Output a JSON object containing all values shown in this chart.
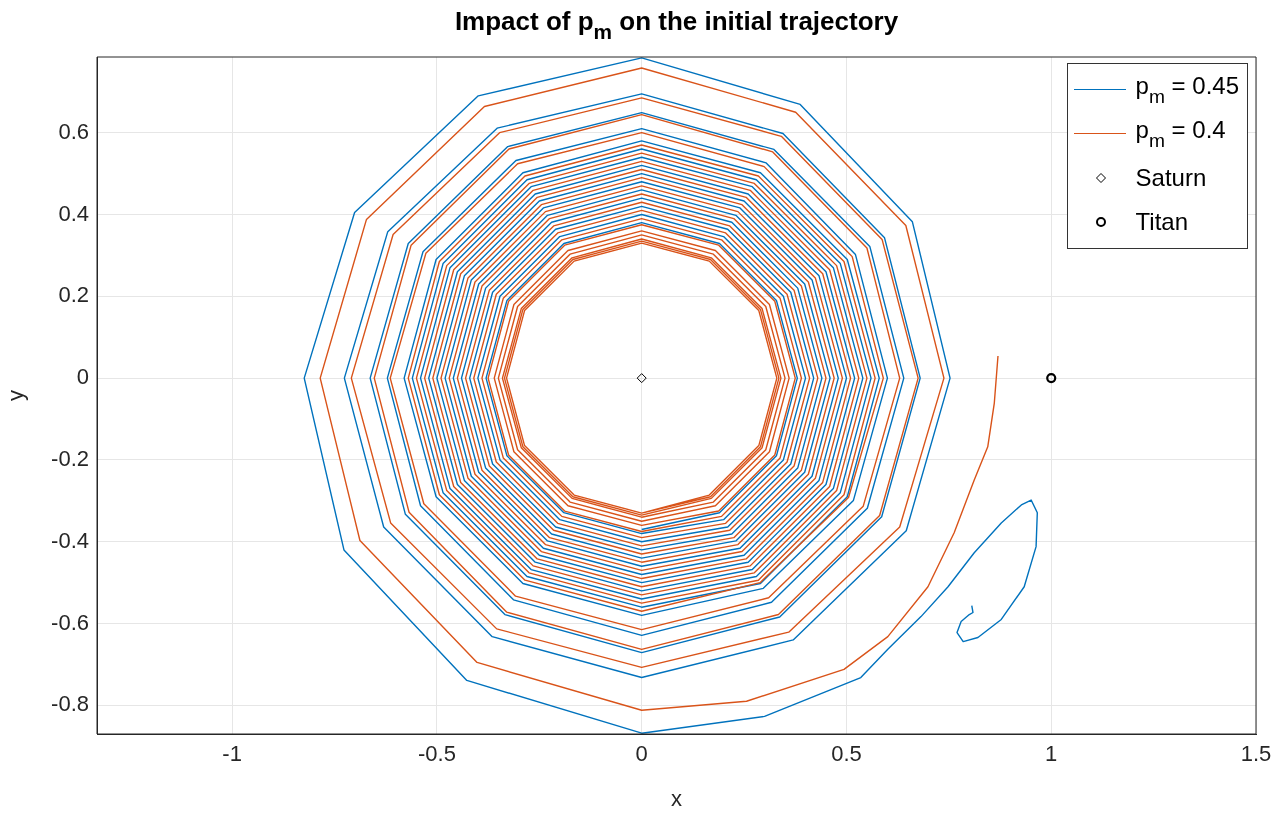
{
  "chart_data": {
    "type": "line",
    "title": "Impact of p$_{m}$ on the initial trajectory",
    "xlabel": "x",
    "ylabel": "y",
    "xlim": [
      -1.33,
      1.5
    ],
    "ylim": [
      -0.87,
      0.785
    ],
    "xticks": [
      -1,
      -0.5,
      0,
      0.5,
      1,
      1.5
    ],
    "yticks": [
      -0.8,
      -0.6,
      -0.4,
      -0.2,
      0,
      0.2,
      0.4,
      0.6
    ],
    "grid": true,
    "legend": "top right",
    "line_style": "solid",
    "marker": "none",
    "series": [
      {
        "name": "p$_{m}$ = 0.45",
        "color": "#0072bd",
        "x": [
          0.806,
          0.809,
          0.8,
          0.78,
          0.77,
          0.785,
          0.821,
          0.878,
          0.934,
          0.963,
          0.966,
          0.951,
          0.927,
          0.878,
          0.812,
          0.748,
          0.682,
          0.601,
          0.535,
          0.3,
          0,
          -0.427,
          -0.727,
          -0.824,
          -0.701,
          -0.399,
          0,
          0.387,
          0.661,
          0.753,
          0.646,
          0.37,
          0,
          -0.365,
          -0.63,
          -0.726,
          -0.62,
          -0.353,
          0,
          0.345,
          0.593,
          0.68,
          0.586,
          0.337,
          0,
          -0.334,
          -0.577,
          -0.663,
          -0.57,
          -0.327,
          0,
          0.323,
          0.557,
          0.64,
          0.551,
          0.317,
          0,
          -0.313,
          -0.54,
          -0.621,
          -0.534,
          -0.307,
          0,
          0.304,
          0.522,
          0.6,
          0.517,
          0.297,
          0,
          -0.29,
          -0.502,
          -0.58,
          -0.502,
          -0.29,
          0,
          0.29,
          0.502,
          0.58,
          0.502,
          0.29,
          0,
          -0.28,
          -0.485,
          -0.56,
          -0.485,
          -0.28,
          0,
          0.28,
          0.485,
          0.56,
          0.485,
          0.28,
          0,
          -0.27,
          -0.468,
          -0.54,
          -0.468,
          -0.27,
          0,
          0.27,
          0.468,
          0.54,
          0.468,
          0.27,
          0,
          -0.26,
          -0.45,
          -0.52,
          -0.45,
          -0.26,
          0,
          0.26,
          0.45,
          0.52,
          0.45,
          0.26,
          0,
          -0.25,
          -0.433,
          -0.5,
          -0.433,
          -0.25,
          0,
          0.25,
          0.433,
          0.5,
          0.433,
          0.25,
          0,
          -0.24,
          -0.416,
          -0.48,
          -0.416,
          -0.24,
          0,
          0.24,
          0.416,
          0.48,
          0.416,
          0.24,
          0,
          -0.23,
          -0.398,
          -0.46,
          -0.398,
          -0.23,
          0,
          0.23,
          0.398,
          0.46,
          0.398,
          0.23,
          0,
          -0.22,
          -0.381,
          -0.44,
          -0.381,
          -0.22,
          0,
          0.22,
          0.381,
          0.44,
          0.381,
          0.22,
          0,
          -0.21,
          -0.364,
          -0.42,
          -0.364,
          -0.21,
          0,
          0.21,
          0.364,
          0.42,
          0.364,
          0.21,
          0,
          -0.2,
          -0.346,
          -0.4,
          -0.346,
          -0.2,
          0,
          0.2,
          0.346,
          0.4,
          0.346,
          0.2,
          0,
          -0.19,
          -0.329,
          -0.38,
          -0.329,
          -0.19,
          0,
          0.19,
          0.329,
          0.38,
          0.329,
          0.19,
          0
        ],
        "values": [
          -0.556,
          -0.573,
          -0.578,
          -0.595,
          -0.622,
          -0.644,
          -0.634,
          -0.59,
          -0.51,
          -0.412,
          -0.329,
          -0.298,
          -0.31,
          -0.354,
          -0.427,
          -0.51,
          -0.583,
          -0.663,
          -0.732,
          -0.827,
          -0.868,
          -0.739,
          -0.42,
          0,
          0.405,
          0.69,
          0.783,
          0.669,
          0.382,
          0,
          -0.373,
          -0.64,
          -0.732,
          -0.632,
          -0.364,
          0,
          0.358,
          0.611,
          0.695,
          0.598,
          0.343,
          0,
          -0.339,
          -0.584,
          -0.671,
          -0.578,
          -0.333,
          0,
          0.329,
          0.566,
          0.649,
          0.559,
          0.322,
          0,
          -0.318,
          -0.548,
          -0.629,
          -0.542,
          -0.312,
          0,
          0.309,
          0.532,
          0.61,
          0.526,
          0.302,
          0,
          -0.299,
          -0.514,
          -0.58,
          -0.502,
          -0.29,
          0,
          0.29,
          0.502,
          0.58,
          0.502,
          0.29,
          0,
          -0.29,
          -0.502,
          -0.56,
          -0.485,
          -0.28,
          0,
          0.28,
          0.485,
          0.56,
          0.485,
          0.28,
          0,
          -0.28,
          -0.485,
          -0.54,
          -0.468,
          -0.27,
          0,
          0.27,
          0.468,
          0.54,
          0.468,
          0.27,
          0,
          -0.27,
          -0.468,
          -0.52,
          -0.45,
          -0.26,
          0,
          0.26,
          0.45,
          0.52,
          0.45,
          0.26,
          0,
          -0.26,
          -0.45,
          -0.5,
          -0.433,
          -0.25,
          0,
          0.25,
          0.433,
          0.5,
          0.433,
          0.25,
          0,
          -0.25,
          -0.433,
          -0.48,
          -0.416,
          -0.24,
          0,
          0.24,
          0.416,
          0.48,
          0.416,
          0.24,
          0,
          -0.24,
          -0.416,
          -0.46,
          -0.398,
          -0.23,
          0,
          0.23,
          0.398,
          0.46,
          0.398,
          0.23,
          0,
          -0.23,
          -0.398,
          -0.44,
          -0.381,
          -0.22,
          0,
          0.22,
          0.381,
          0.44,
          0.381,
          0.22,
          0,
          -0.22,
          -0.381,
          -0.42,
          -0.364,
          -0.21,
          0,
          0.21,
          0.364,
          0.42,
          0.364,
          0.21,
          0,
          -0.21,
          -0.364,
          -0.4,
          -0.346,
          -0.2,
          0,
          0.2,
          0.346,
          0.4,
          0.346,
          0.2,
          0,
          -0.2,
          -0.346,
          -0.38,
          -0.329,
          -0.19,
          0,
          0.19,
          0.329,
          0.38,
          0.329,
          0.19,
          0,
          -0.19,
          -0.329,
          -0.37
        ]
      },
      {
        "name": "p$_{m}$ = 0.4",
        "color": "#d95319",
        "x": [
          0.87,
          0.861,
          0.845,
          0.812,
          0.763,
          0.699,
          0.601,
          0.494,
          0.256,
          0,
          -0.402,
          -0.688,
          -0.785,
          -0.672,
          -0.384,
          0,
          0.376,
          0.645,
          0.738,
          0.63,
          0.359,
          0,
          -0.354,
          -0.613,
          -0.709,
          -0.607,
          -0.347,
          0,
          0.341,
          0.587,
          0.675,
          0.581,
          0.334,
          0,
          -0.33,
          -0.568,
          -0.653,
          -0.563,
          -0.324,
          0,
          0.32,
          0.55,
          0.63,
          0.541,
          0.31,
          0,
          -0.308,
          -0.532,
          -0.614,
          -0.527,
          -0.303,
          0,
          0.299,
          0.514,
          0.59,
          0.505,
          0.289,
          0,
          -0.285,
          -0.494,
          -0.57,
          -0.494,
          -0.285,
          0,
          0.285,
          0.494,
          0.57,
          0.494,
          0.285,
          0,
          -0.275,
          -0.476,
          -0.55,
          -0.476,
          -0.275,
          0,
          0.275,
          0.476,
          0.55,
          0.476,
          0.275,
          0,
          -0.265,
          -0.459,
          -0.53,
          -0.459,
          -0.265,
          0,
          0.265,
          0.459,
          0.53,
          0.459,
          0.265,
          0,
          -0.255,
          -0.442,
          -0.51,
          -0.442,
          -0.255,
          0,
          0.255,
          0.442,
          0.51,
          0.442,
          0.255,
          0,
          -0.245,
          -0.424,
          -0.49,
          -0.424,
          -0.245,
          0,
          0.245,
          0.424,
          0.49,
          0.424,
          0.245,
          0,
          -0.235,
          -0.407,
          -0.47,
          -0.407,
          -0.235,
          0,
          0.235,
          0.407,
          0.47,
          0.407,
          0.235,
          0,
          -0.225,
          -0.39,
          -0.45,
          -0.39,
          -0.225,
          0,
          0.225,
          0.39,
          0.45,
          0.39,
          0.225,
          0,
          -0.215,
          -0.372,
          -0.43,
          -0.372,
          -0.215,
          0,
          0.215,
          0.372,
          0.43,
          0.372,
          0.215,
          0,
          -0.205,
          -0.355,
          -0.41,
          -0.355,
          -0.205,
          0,
          0.205,
          0.355,
          0.41,
          0.355,
          0.205,
          0,
          -0.195,
          -0.338,
          -0.39,
          -0.338,
          -0.195,
          0,
          0.195,
          0.338,
          0.39,
          0.338,
          0.195,
          0,
          -0.188,
          -0.325,
          -0.375,
          -0.325,
          -0.188,
          0,
          0.188,
          0.325,
          0.375,
          0.325,
          0.188,
          0,
          -0.18,
          -0.312,
          -0.36,
          -0.312,
          -0.18,
          0,
          0.18,
          0.312,
          0.36,
          0.312,
          0.18,
          0,
          -0.175,
          -0.303,
          -0.35,
          -0.303,
          -0.175,
          0,
          0.175,
          0.303,
          0.35,
          0.303,
          0.175,
          0,
          -0.17,
          -0.294,
          -0.34,
          -0.294,
          -0.17,
          0,
          0.17,
          0.294,
          0.34,
          0.294,
          0.17,
          0,
          -0.168,
          -0.29,
          -0.335,
          -0.29,
          -0.168,
          0,
          0.168,
          0.29,
          0.335,
          0.29,
          0.168,
          0,
          -0.165,
          -0.286,
          -0.33,
          -0.286,
          -0.165,
          0,
          0.165,
          0.286,
          0.33,
          0.286,
          0.165,
          0
        ],
        "values": [
          0.054,
          -0.061,
          -0.168,
          -0.249,
          -0.378,
          -0.51,
          -0.632,
          -0.712,
          -0.79,
          -0.812,
          -0.695,
          -0.397,
          0,
          0.388,
          0.664,
          0.758,
          0.65,
          0.373,
          0,
          -0.364,
          -0.621,
          -0.707,
          -0.613,
          -0.354,
          0,
          0.351,
          0.6,
          0.685,
          0.591,
          0.339,
          0,
          -0.336,
          -0.578,
          -0.663,
          -0.572,
          -0.328,
          0,
          0.325,
          0.56,
          0.644,
          0.553,
          0.318,
          0,
          -0.313,
          -0.537,
          -0.615,
          -0.533,
          -0.307,
          0,
          0.305,
          0.524,
          0.6,
          0.517,
          0.297,
          0,
          -0.292,
          -0.5,
          -0.57,
          -0.494,
          -0.285,
          0,
          0.285,
          0.494,
          0.57,
          0.494,
          0.285,
          0,
          -0.285,
          -0.494,
          -0.55,
          -0.476,
          -0.275,
          0,
          0.275,
          0.476,
          0.55,
          0.476,
          0.275,
          0,
          -0.275,
          -0.476,
          -0.53,
          -0.459,
          -0.265,
          0,
          0.265,
          0.459,
          0.53,
          0.459,
          0.265,
          0,
          -0.265,
          -0.459,
          -0.51,
          -0.442,
          -0.255,
          0,
          0.255,
          0.442,
          0.51,
          0.442,
          0.255,
          0,
          -0.255,
          -0.442,
          -0.49,
          -0.424,
          -0.245,
          0,
          0.245,
          0.424,
          0.49,
          0.424,
          0.245,
          0,
          -0.245,
          -0.424,
          -0.47,
          -0.407,
          -0.235,
          0,
          0.235,
          0.407,
          0.47,
          0.407,
          0.235,
          0,
          -0.235,
          -0.407,
          -0.45,
          -0.39,
          -0.225,
          0,
          0.225,
          0.39,
          0.45,
          0.39,
          0.225,
          0,
          -0.225,
          -0.39,
          -0.43,
          -0.372,
          -0.215,
          0,
          0.215,
          0.372,
          0.43,
          0.372,
          0.215,
          0,
          -0.215,
          -0.372,
          -0.41,
          -0.355,
          -0.205,
          0,
          0.205,
          0.355,
          0.41,
          0.355,
          0.205,
          0,
          -0.205,
          -0.355,
          -0.39,
          -0.338,
          -0.195,
          0,
          0.195,
          0.338,
          0.39,
          0.338,
          0.195,
          0,
          -0.195,
          -0.338,
          -0.375,
          -0.325,
          -0.188,
          0,
          0.188,
          0.325,
          0.375,
          0.325,
          0.188,
          0,
          -0.188,
          -0.325,
          -0.36,
          -0.312,
          -0.18,
          0,
          0.18,
          0.312,
          0.36,
          0.312,
          0.18,
          0,
          -0.18,
          -0.312,
          -0.35,
          -0.303,
          -0.175,
          0,
          0.175,
          0.303,
          0.35,
          0.303,
          0.175,
          0,
          -0.175,
          -0.303,
          -0.34,
          -0.294,
          -0.17,
          0,
          0.17,
          0.294,
          0.34,
          0.294,
          0.17,
          0,
          -0.17,
          -0.294,
          -0.335,
          -0.29,
          -0.168,
          0,
          0.168,
          0.29,
          0.335,
          0.29,
          0.168,
          0,
          -0.168,
          -0.29,
          -0.33,
          -0.286,
          -0.165,
          0,
          0.165,
          0.286,
          0.33,
          0.286,
          0.165,
          0,
          -0.165,
          -0.286,
          -0.33
        ]
      },
      {
        "name": "Saturn",
        "type": "scatter",
        "marker": "diamond",
        "color": "#000000",
        "x": [
          0
        ],
        "values": [
          0
        ]
      },
      {
        "name": "Titan",
        "type": "scatter",
        "marker": "circle",
        "color": "#000000",
        "x": [
          1
        ],
        "values": [
          0
        ]
      }
    ]
  }
}
